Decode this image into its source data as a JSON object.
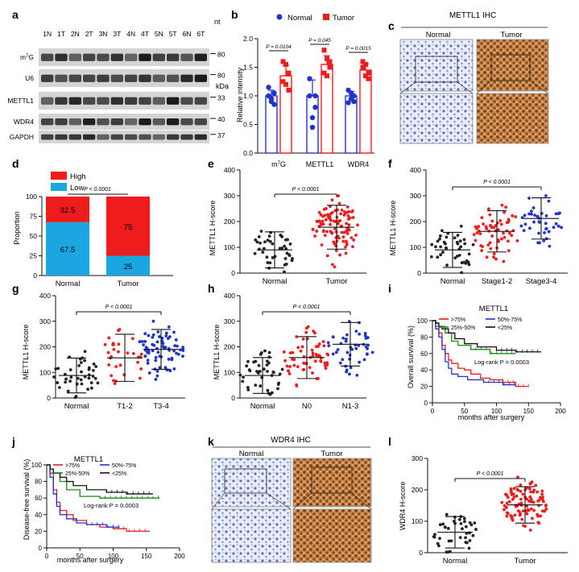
{
  "panels": {
    "a": {
      "letter": "a",
      "lanes": [
        "1N",
        "1T",
        "2N",
        "2T",
        "3N",
        "3T",
        "4N",
        "4T",
        "5N",
        "5T",
        "6N",
        "6T"
      ],
      "unit": "nt",
      "unit2": "kDa",
      "rows": [
        {
          "label": "m7G",
          "marker": "80"
        },
        {
          "label": "U6",
          "marker": "80"
        },
        {
          "label": "METTL1",
          "marker": "33"
        },
        {
          "label": "WDR4",
          "marker": "40"
        },
        {
          "label": "GAPDH",
          "marker": "37"
        }
      ]
    },
    "b": {
      "letter": "b",
      "legend": [
        "Normal",
        "Tumor"
      ],
      "colors": {
        "normal": "#2233cc",
        "tumor": "#ee1c1c"
      },
      "ylabel": "Relative intensity",
      "yticks": [
        "0.0",
        "0.5",
        "1.0",
        "1.5",
        "2.0"
      ],
      "groups": [
        "m7G",
        "METTL1",
        "WDR4"
      ],
      "pvalues": [
        "P = 0.0104",
        "P = 0.045",
        "P = 0.0015"
      ]
    },
    "c": {
      "letter": "c",
      "title": "METTL1 IHC",
      "sub": [
        "Normal",
        "Tumor"
      ]
    },
    "d": {
      "letter": "d",
      "legend": [
        "High",
        "Low"
      ],
      "colors": {
        "high": "#ee1c1c",
        "low": "#1aa6e0"
      },
      "ylabel": "Proportion",
      "yticks": [
        "0",
        "25",
        "50",
        "75",
        "100"
      ],
      "pvalue": "P < 0.0001"
    },
    "e": {
      "letter": "e",
      "ylabel": "METTL1 H-score",
      "yticks": [
        "0",
        "100",
        "200",
        "300",
        "400"
      ],
      "pvalue": "P < 0.0001"
    },
    "f": {
      "letter": "f",
      "ylabel": "METTL1 H-score",
      "yticks": [
        "0",
        "100",
        "200",
        "300",
        "400"
      ],
      "pvalue": "P < 0.0001"
    },
    "g": {
      "letter": "g",
      "ylabel": "METTL1 H-score",
      "yticks": [
        "0",
        "100",
        "200",
        "300",
        "400"
      ],
      "pvalue": "P < 0.0001"
    },
    "h": {
      "letter": "h",
      "ylabel": "METTL1 H-score",
      "yticks": [
        "0",
        "100",
        "200",
        "300",
        "400"
      ],
      "pvalue": "P < 0.0001"
    },
    "i": {
      "letter": "i",
      "title": "METTL1",
      "ylabel": "Overall survival (%)",
      "xlabel": "months after surgery",
      "logrank": "Log-rank P = 0.0003",
      "legend": [
        ">75%",
        "25%-50%",
        "50%-75%",
        "<25%"
      ],
      "yticks": [
        "0",
        "20",
        "40",
        "60",
        "80",
        "100"
      ],
      "xticks": [
        "0",
        "50",
        "100",
        "150",
        "200"
      ]
    },
    "j": {
      "letter": "j",
      "title": "METTL1",
      "ylabel": "Disease-free survival (%)",
      "xlabel": "months after surgery",
      "logrank": "Log-rank P = 0.0003",
      "legend": [
        ">75%",
        "25%-50%",
        "50%-75%",
        "<25%"
      ],
      "yticks": [
        "0",
        "20",
        "40",
        "60",
        "80",
        "100"
      ],
      "xticks": [
        "0",
        "50",
        "100",
        "150",
        "200"
      ]
    },
    "k": {
      "letter": "k",
      "title": "WDR4 IHC",
      "sub": [
        "Normal",
        "Tumor"
      ]
    },
    "l": {
      "letter": "l",
      "ylabel": "WDR4 H-score",
      "yticks": [
        "0",
        "100",
        "200",
        "300"
      ],
      "pvalue": "P < 0.0001"
    }
  },
  "chart_data": [
    {
      "panel": "b",
      "type": "bar",
      "categories": [
        "m7G",
        "METTL1",
        "WDR4"
      ],
      "series": [
        {
          "name": "Normal",
          "values": [
            1.0,
            1.0,
            1.0
          ],
          "points": [
            [
              1.15,
              0.95,
              0.85,
              1.0,
              0.9,
              1.05
            ],
            [
              1.3,
              0.62,
              1.0,
              1.0,
              0.45,
              0.8
            ],
            [
              1.1,
              0.95,
              1.0,
              0.88,
              1.05,
              0.9
            ]
          ]
        },
        {
          "name": "Tumor",
          "values": [
            1.35,
            1.55,
            1.45
          ],
          "points": [
            [
              1.6,
              1.55,
              1.4,
              1.25,
              1.2,
              1.1
            ],
            [
              1.8,
              1.65,
              1.5,
              1.4,
              1.35,
              1.6
            ],
            [
              1.6,
              1.55,
              1.4,
              1.5,
              1.35,
              1.3
            ]
          ]
        }
      ],
      "ylim": [
        0,
        2.0
      ]
    },
    {
      "panel": "d",
      "type": "bar",
      "categories": [
        "Normal",
        "Tumor"
      ],
      "series": [
        {
          "name": "High",
          "values": [
            32.5,
            75
          ]
        },
        {
          "name": "Low",
          "values": [
            67.5,
            25
          ]
        }
      ],
      "ylim": [
        0,
        100
      ]
    },
    {
      "panel": "e",
      "type": "scatter",
      "categories": [
        "Normal",
        "Tumor"
      ],
      "means": [
        90,
        178
      ],
      "sd": [
        70,
        85
      ],
      "n": [
        40,
        100
      ],
      "colors": [
        "#222222",
        "#ee1c1c"
      ],
      "ylim": [
        0,
        400
      ]
    },
    {
      "panel": "f",
      "type": "scatter",
      "categories": [
        "Normal",
        "Stage1-2",
        "Stage3-4"
      ],
      "means": [
        90,
        162,
        212
      ],
      "sd": [
        68,
        80,
        80
      ],
      "n": [
        40,
        60,
        40
      ],
      "colors": [
        "#222222",
        "#ee1c1c",
        "#2233cc"
      ],
      "ylim": [
        0,
        400
      ]
    },
    {
      "panel": "g",
      "type": "scatter",
      "categories": [
        "Normal",
        "T1-2",
        "T3-4"
      ],
      "means": [
        88,
        157,
        190
      ],
      "sd": [
        68,
        92,
        78
      ],
      "n": [
        40,
        30,
        70
      ],
      "colors": [
        "#222222",
        "#ee1c1c",
        "#2233cc"
      ],
      "ylim": [
        0,
        400
      ]
    },
    {
      "panel": "h",
      "type": "scatter",
      "categories": [
        "Normal",
        "N0",
        "N1-3"
      ],
      "means": [
        88,
        158,
        210
      ],
      "sd": [
        70,
        82,
        85
      ],
      "n": [
        40,
        60,
        45
      ],
      "colors": [
        "#222222",
        "#ee1c1c",
        "#2233cc"
      ],
      "ylim": [
        0,
        400
      ]
    },
    {
      "panel": "i",
      "type": "line",
      "xlim": [
        0,
        200
      ],
      "ylim": [
        0,
        100
      ],
      "series": [
        {
          "name": ">75%",
          "color": "#ee1c1c",
          "x": [
            0,
            5,
            10,
            15,
            20,
            25,
            30,
            40,
            50,
            60,
            75,
            90,
            110,
            130,
            150
          ],
          "y": [
            100,
            93,
            85,
            70,
            60,
            52,
            48,
            42,
            40,
            35,
            30,
            28,
            25,
            20,
            20
          ]
        },
        {
          "name": "25%-50%",
          "color": "#1a8a1a",
          "x": [
            0,
            5,
            10,
            20,
            30,
            40,
            60,
            90,
            130
          ],
          "y": [
            100,
            97,
            93,
            85,
            75,
            70,
            65,
            60,
            60
          ]
        },
        {
          "name": "50%-75%",
          "color": "#2233cc",
          "x": [
            0,
            5,
            10,
            15,
            20,
            25,
            30,
            40,
            55,
            80,
            110,
            130
          ],
          "y": [
            100,
            90,
            80,
            65,
            50,
            42,
            35,
            32,
            28,
            25,
            22,
            22
          ]
        },
        {
          "name": "<25%",
          "color": "#111111",
          "x": [
            0,
            5,
            10,
            15,
            25,
            35,
            50,
            70,
            100,
            130,
            170
          ],
          "y": [
            100,
            97,
            93,
            90,
            85,
            78,
            72,
            68,
            64,
            62,
            62
          ]
        }
      ]
    },
    {
      "panel": "j",
      "type": "line",
      "xlim": [
        0,
        200
      ],
      "ylim": [
        0,
        100
      ],
      "series": [
        {
          "name": ">75%",
          "color": "#ee1c1c",
          "x": [
            0,
            5,
            10,
            15,
            20,
            30,
            40,
            60,
            80,
            100,
            120,
            155
          ],
          "y": [
            100,
            90,
            70,
            55,
            45,
            40,
            33,
            28,
            25,
            23,
            20,
            20
          ]
        },
        {
          "name": "25%-50%",
          "color": "#1a8a1a",
          "x": [
            0,
            5,
            10,
            20,
            30,
            50,
            80,
            120,
            170
          ],
          "y": [
            100,
            95,
            90,
            80,
            70,
            62,
            60,
            60,
            60
          ]
        },
        {
          "name": "50%-75%",
          "color": "#2233cc",
          "x": [
            0,
            5,
            10,
            15,
            20,
            30,
            45,
            60,
            90,
            110
          ],
          "y": [
            100,
            85,
            65,
            50,
            40,
            35,
            30,
            28,
            25,
            25
          ]
        },
        {
          "name": "<25%",
          "color": "#111111",
          "x": [
            0,
            5,
            10,
            20,
            30,
            40,
            60,
            90,
            120,
            160
          ],
          "y": [
            100,
            95,
            90,
            85,
            80,
            75,
            70,
            67,
            65,
            65
          ]
        }
      ]
    },
    {
      "panel": "l",
      "type": "scatter",
      "categories": [
        "Normal",
        "Tumor"
      ],
      "means": [
        65,
        152
      ],
      "sd": [
        50,
        58
      ],
      "n": [
        40,
        100
      ],
      "colors": [
        "#222222",
        "#ee1c1c"
      ],
      "ylim": [
        0,
        300
      ]
    }
  ]
}
